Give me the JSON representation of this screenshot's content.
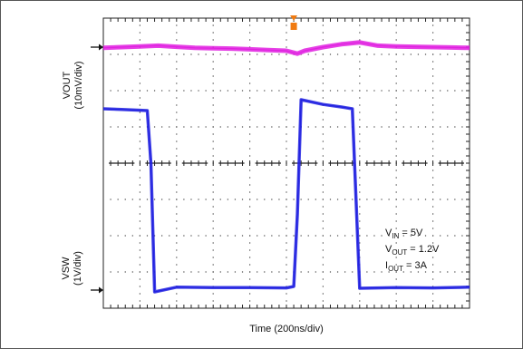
{
  "chart_data": {
    "type": "line",
    "title": "",
    "xlabel": "Time (200ns/div)",
    "x_divisions": 10,
    "y_divisions": 8,
    "y_labels": [
      {
        "name": "VOUT",
        "scale": "(10mV/div)"
      },
      {
        "name": "VSW",
        "scale": "(1V/div)"
      }
    ],
    "annotations": [
      {
        "sym": "V",
        "sub": "IN",
        "rest": " = 5V"
      },
      {
        "sym": "V",
        "sub": "OUT",
        "rest": " = 1.2V"
      },
      {
        "sym": "I",
        "sub": "OUT",
        "rest": " = 3A"
      }
    ],
    "series": [
      {
        "color": "#e020e0",
        "unit": "div",
        "x": [
          0,
          0.5,
          1,
          1.5,
          2,
          2.5,
          3,
          3.5,
          4,
          4.5,
          5,
          5.3,
          5.5,
          6,
          6.5,
          7,
          7.5,
          8,
          8.5,
          9,
          9.5,
          10
        ],
        "y": [
          7.18,
          7.2,
          7.22,
          7.24,
          7.21,
          7.18,
          7.17,
          7.16,
          7.14,
          7.12,
          7.1,
          7.02,
          7.1,
          7.2,
          7.28,
          7.33,
          7.24,
          7.22,
          7.21,
          7.2,
          7.19,
          7.18
        ]
      },
      {
        "color": "#2020e0",
        "unit": "div",
        "x": [
          0,
          0.5,
          1,
          1.2,
          1.3,
          1.4,
          2,
          3,
          4,
          5,
          5.2,
          5.3,
          5.4,
          6,
          6.5,
          6.8,
          6.9,
          7.0,
          8,
          9,
          10
        ],
        "y": [
          5.5,
          5.48,
          5.46,
          5.45,
          4.0,
          0.45,
          0.58,
          0.57,
          0.57,
          0.56,
          0.6,
          2.6,
          5.75,
          5.62,
          5.55,
          5.5,
          3.0,
          0.55,
          0.57,
          0.56,
          0.58
        ]
      }
    ],
    "markers": {
      "trigger_x": 5.2,
      "trigger_color": "#f07a10",
      "ch1_ground_y": 7.2,
      "ch2_ground_y": 0.5
    }
  }
}
